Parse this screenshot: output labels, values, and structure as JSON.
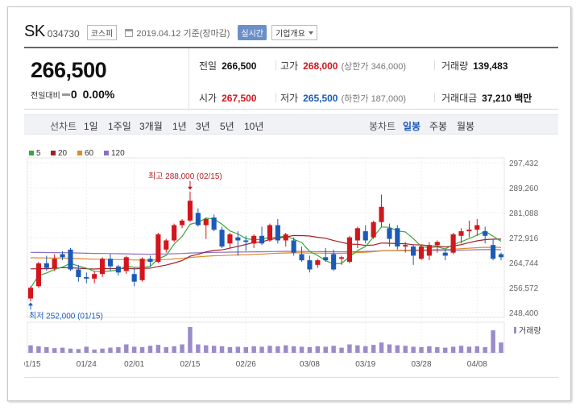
{
  "header": {
    "name": "SK",
    "code": "034730",
    "market": "코스피",
    "date": "2019.04.12 기준(장마감)",
    "realtime_label": "실시간",
    "company_info_label": "기업개요"
  },
  "quote": {
    "price": "266,500",
    "change_label": "전일대비",
    "change": "0",
    "change_pct": "0.00%",
    "prev_close_label": "전일",
    "prev_close": "266,500",
    "high_label": "고가",
    "high": "268,000",
    "upper_limit": "(상한가 346,000)",
    "volume_label": "거래량",
    "volume": "139,483",
    "open_label": "시가",
    "open": "267,500",
    "low_label": "저가",
    "low": "265,500",
    "lower_limit": "(하한가 187,000)",
    "amount_label": "거래대금",
    "amount": "37,210 백만"
  },
  "periods": {
    "line_label": "선차트",
    "line_items": [
      "1일",
      "1주일",
      "3개월",
      "1년",
      "3년",
      "5년",
      "10년"
    ],
    "candle_label": "봉차트",
    "candle_items": [
      "일봉",
      "주봉",
      "월봉"
    ],
    "active_candle": "일봉"
  },
  "colors": {
    "up": "#d2161e",
    "down": "#1b5bb7",
    "ma5": "#3aa63a",
    "ma20": "#a31f24",
    "ma60": "#e08a2a",
    "ma120": "#8e6fbf",
    "volume": "#9b8bc9"
  },
  "chart_data": {
    "type": "candlestick",
    "legend": [
      {
        "name": "5",
        "color": "#3aa63a"
      },
      {
        "name": "20",
        "color": "#a31f24"
      },
      {
        "name": "60",
        "color": "#e08a2a"
      },
      {
        "name": "120",
        "color": "#8e6fbf"
      }
    ],
    "y_ticks": [
      "297,432",
      "289,260",
      "281,088",
      "272,916",
      "264,744",
      "256,572",
      "248,400"
    ],
    "ylim": [
      248400,
      297432
    ],
    "x_ticks": [
      {
        "label": "01/15",
        "index": 0
      },
      {
        "label": "01/24",
        "index": 7
      },
      {
        "label": "02/01",
        "index": 13
      },
      {
        "label": "02/15",
        "index": 20
      },
      {
        "label": "02/26",
        "index": 27
      },
      {
        "label": "03/08",
        "index": 35
      },
      {
        "label": "03/19",
        "index": 42
      },
      {
        "label": "03/28",
        "index": 49
      },
      {
        "label": "04/08",
        "index": 56
      }
    ],
    "max_annotation": {
      "label": "최고 288,000 (02/15)",
      "index": 20,
      "value": 288000
    },
    "min_annotation": {
      "label": "최저 252,000 (01/15)",
      "index": 0,
      "value": 252000
    },
    "volume_label": "거래량",
    "candles": [
      {
        "o": 253000,
        "h": 257000,
        "l": 252000,
        "c": 256500
      },
      {
        "o": 257000,
        "h": 265000,
        "l": 256500,
        "c": 264500
      },
      {
        "o": 264500,
        "h": 267000,
        "l": 262000,
        "c": 263000
      },
      {
        "o": 263000,
        "h": 267500,
        "l": 262000,
        "c": 266000
      },
      {
        "o": 267500,
        "h": 268500,
        "l": 265500,
        "c": 266500
      },
      {
        "o": 269000,
        "h": 269500,
        "l": 262000,
        "c": 262500
      },
      {
        "o": 262500,
        "h": 264000,
        "l": 258500,
        "c": 260000
      },
      {
        "o": 260000,
        "h": 261500,
        "l": 258000,
        "c": 259500
      },
      {
        "o": 259500,
        "h": 262000,
        "l": 258000,
        "c": 261000
      },
      {
        "o": 261000,
        "h": 266500,
        "l": 260000,
        "c": 266000
      },
      {
        "o": 266000,
        "h": 267500,
        "l": 262000,
        "c": 263500
      },
      {
        "o": 263500,
        "h": 264000,
        "l": 260500,
        "c": 261500
      },
      {
        "o": 262000,
        "h": 267000,
        "l": 261000,
        "c": 266500
      },
      {
        "o": 261000,
        "h": 263000,
        "l": 257000,
        "c": 258500
      },
      {
        "o": 259000,
        "h": 266500,
        "l": 258500,
        "c": 266000
      },
      {
        "o": 266000,
        "h": 267000,
        "l": 263500,
        "c": 265000
      },
      {
        "o": 265000,
        "h": 274500,
        "l": 264500,
        "c": 274000
      },
      {
        "o": 269000,
        "h": 272500,
        "l": 268000,
        "c": 272000
      },
      {
        "o": 272000,
        "h": 277500,
        "l": 271500,
        "c": 277000
      },
      {
        "o": 277000,
        "h": 279000,
        "l": 276000,
        "c": 278500
      },
      {
        "o": 278500,
        "h": 288000,
        "l": 278000,
        "c": 285000
      },
      {
        "o": 281000,
        "h": 282500,
        "l": 276500,
        "c": 277000
      },
      {
        "o": 277000,
        "h": 279500,
        "l": 272500,
        "c": 279000
      },
      {
        "o": 279500,
        "h": 280500,
        "l": 275000,
        "c": 275500
      },
      {
        "o": 275500,
        "h": 276500,
        "l": 269500,
        "c": 270000
      },
      {
        "o": 271000,
        "h": 274500,
        "l": 269500,
        "c": 274000
      },
      {
        "o": 273000,
        "h": 275000,
        "l": 267000,
        "c": 272000
      },
      {
        "o": 272000,
        "h": 273500,
        "l": 268500,
        "c": 271500
      },
      {
        "o": 271000,
        "h": 274000,
        "l": 269500,
        "c": 273500
      },
      {
        "o": 273500,
        "h": 276500,
        "l": 270500,
        "c": 271000
      },
      {
        "o": 272000,
        "h": 277500,
        "l": 271500,
        "c": 277000
      },
      {
        "o": 277000,
        "h": 279000,
        "l": 271000,
        "c": 272000
      },
      {
        "o": 272000,
        "h": 274500,
        "l": 270000,
        "c": 274000
      },
      {
        "o": 272000,
        "h": 273000,
        "l": 267000,
        "c": 268000
      },
      {
        "o": 267500,
        "h": 270000,
        "l": 265000,
        "c": 265500
      },
      {
        "o": 265500,
        "h": 267000,
        "l": 261500,
        "c": 262500
      },
      {
        "o": 264000,
        "h": 266000,
        "l": 263000,
        "c": 265500
      },
      {
        "o": 266500,
        "h": 269500,
        "l": 265000,
        "c": 265500
      },
      {
        "o": 267500,
        "h": 269000,
        "l": 262000,
        "c": 262500
      },
      {
        "o": 266000,
        "h": 267000,
        "l": 264000,
        "c": 266500
      },
      {
        "o": 265000,
        "h": 273500,
        "l": 264500,
        "c": 273000
      },
      {
        "o": 272000,
        "h": 276500,
        "l": 269500,
        "c": 276000
      },
      {
        "o": 275000,
        "h": 277000,
        "l": 271000,
        "c": 272000
      },
      {
        "o": 273000,
        "h": 278500,
        "l": 272500,
        "c": 278000
      },
      {
        "o": 278000,
        "h": 287000,
        "l": 276500,
        "c": 283000
      },
      {
        "o": 276000,
        "h": 277500,
        "l": 270000,
        "c": 272500
      },
      {
        "o": 276000,
        "h": 277000,
        "l": 269000,
        "c": 270000
      },
      {
        "o": 270000,
        "h": 271500,
        "l": 268000,
        "c": 270500
      },
      {
        "o": 270000,
        "h": 270500,
        "l": 264000,
        "c": 267000
      },
      {
        "o": 266000,
        "h": 270500,
        "l": 265500,
        "c": 270000
      },
      {
        "o": 267000,
        "h": 271500,
        "l": 265500,
        "c": 270500
      },
      {
        "o": 270500,
        "h": 272000,
        "l": 268000,
        "c": 271500
      },
      {
        "o": 268000,
        "h": 269000,
        "l": 265500,
        "c": 267000
      },
      {
        "o": 268000,
        "h": 274500,
        "l": 267500,
        "c": 274000
      },
      {
        "o": 273500,
        "h": 276000,
        "l": 271000,
        "c": 275000
      },
      {
        "o": 275000,
        "h": 278500,
        "l": 273000,
        "c": 275500
      },
      {
        "o": 275500,
        "h": 279000,
        "l": 273500,
        "c": 277000
      },
      {
        "o": 275000,
        "h": 276500,
        "l": 271000,
        "c": 273500
      },
      {
        "o": 270500,
        "h": 272500,
        "l": 265500,
        "c": 266000
      },
      {
        "o": 267500,
        "h": 268000,
        "l": 265500,
        "c": 266500
      }
    ],
    "volume": [
      16,
      14,
      12,
      10,
      11,
      9,
      8,
      13,
      7,
      9,
      11,
      12,
      18,
      13,
      12,
      15,
      17,
      12,
      14,
      18,
      55,
      18,
      16,
      15,
      14,
      12,
      13,
      12,
      14,
      13,
      15,
      14,
      16,
      14,
      13,
      12,
      14,
      13,
      15,
      11,
      18,
      16,
      14,
      17,
      22,
      18,
      16,
      15,
      13,
      12,
      14,
      12,
      11,
      13,
      15,
      13,
      14,
      12,
      48,
      22
    ]
  }
}
